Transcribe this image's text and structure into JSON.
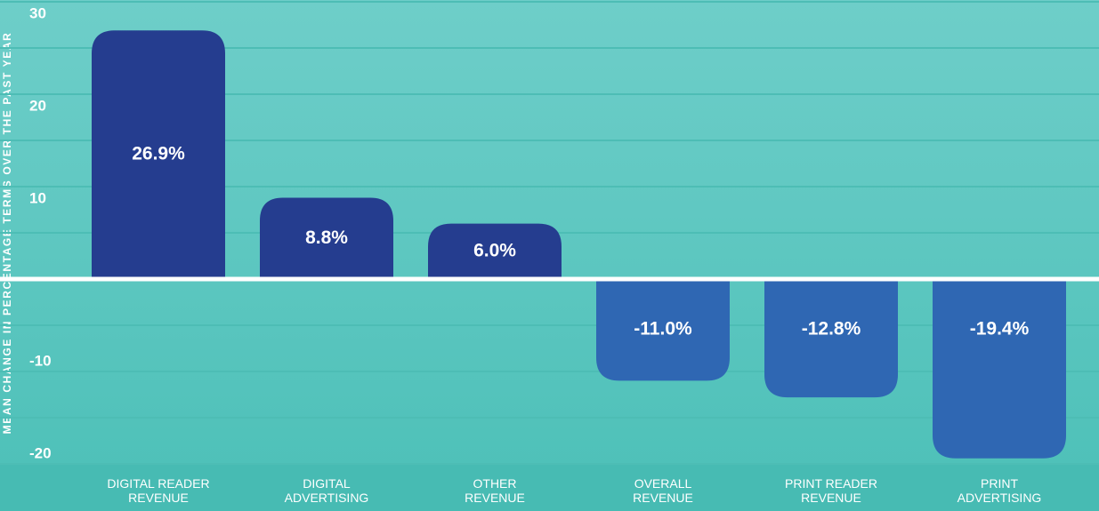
{
  "chart_data": {
    "type": "bar",
    "y_label": "MEAN CHANGE IN PERCENTAGE TERMS OVER THE PAST YEAR",
    "categories": [
      "DIGITAL READER\nREVENUE",
      "DIGITAL\nADVERTISING",
      "OTHER\nREVENUE",
      "OVERALL\nREVENUE",
      "PRINT READER\nREVENUE",
      "PRINT\nADVERTISING"
    ],
    "values": [
      26.9,
      8.8,
      6.0,
      -11.0,
      -12.8,
      -19.4
    ],
    "value_labels": [
      "26.9%",
      "8.8%",
      "6.0%",
      "-11.0%",
      "-12.8%",
      "-19.4%"
    ],
    "positive_color": "#253d8f",
    "negative_color": "#2f67b3",
    "ylim": [
      -20,
      30
    ],
    "yticks": [
      -20,
      -10,
      10,
      20,
      30
    ],
    "minor_yticks": [
      -15,
      -5,
      5,
      15,
      25
    ],
    "grid": true
  }
}
